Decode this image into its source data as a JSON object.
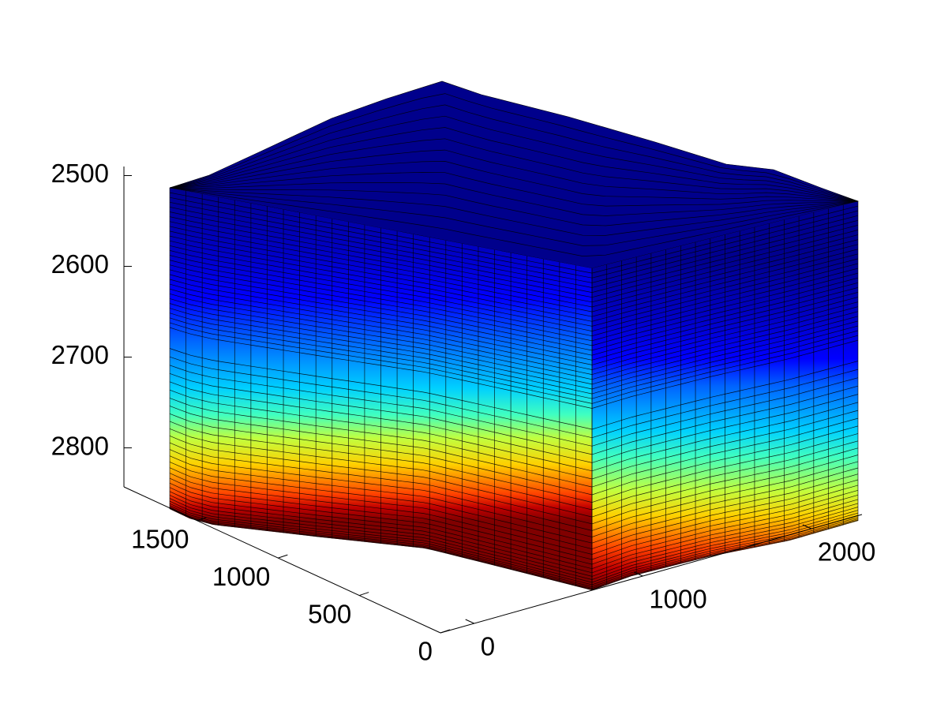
{
  "chart_data": {
    "type": "surface",
    "xlim": [
      -200,
      2300
    ],
    "xticks": [
      0,
      1000,
      2000
    ],
    "ylim": [
      0,
      1950
    ],
    "yticks": [
      0,
      500,
      1000,
      1500
    ],
    "zlim": [
      2490,
      2843
    ],
    "zticks": [
      2500,
      2600,
      2700,
      2800
    ],
    "zdir": "reverse",
    "colormap": "jet"
  }
}
